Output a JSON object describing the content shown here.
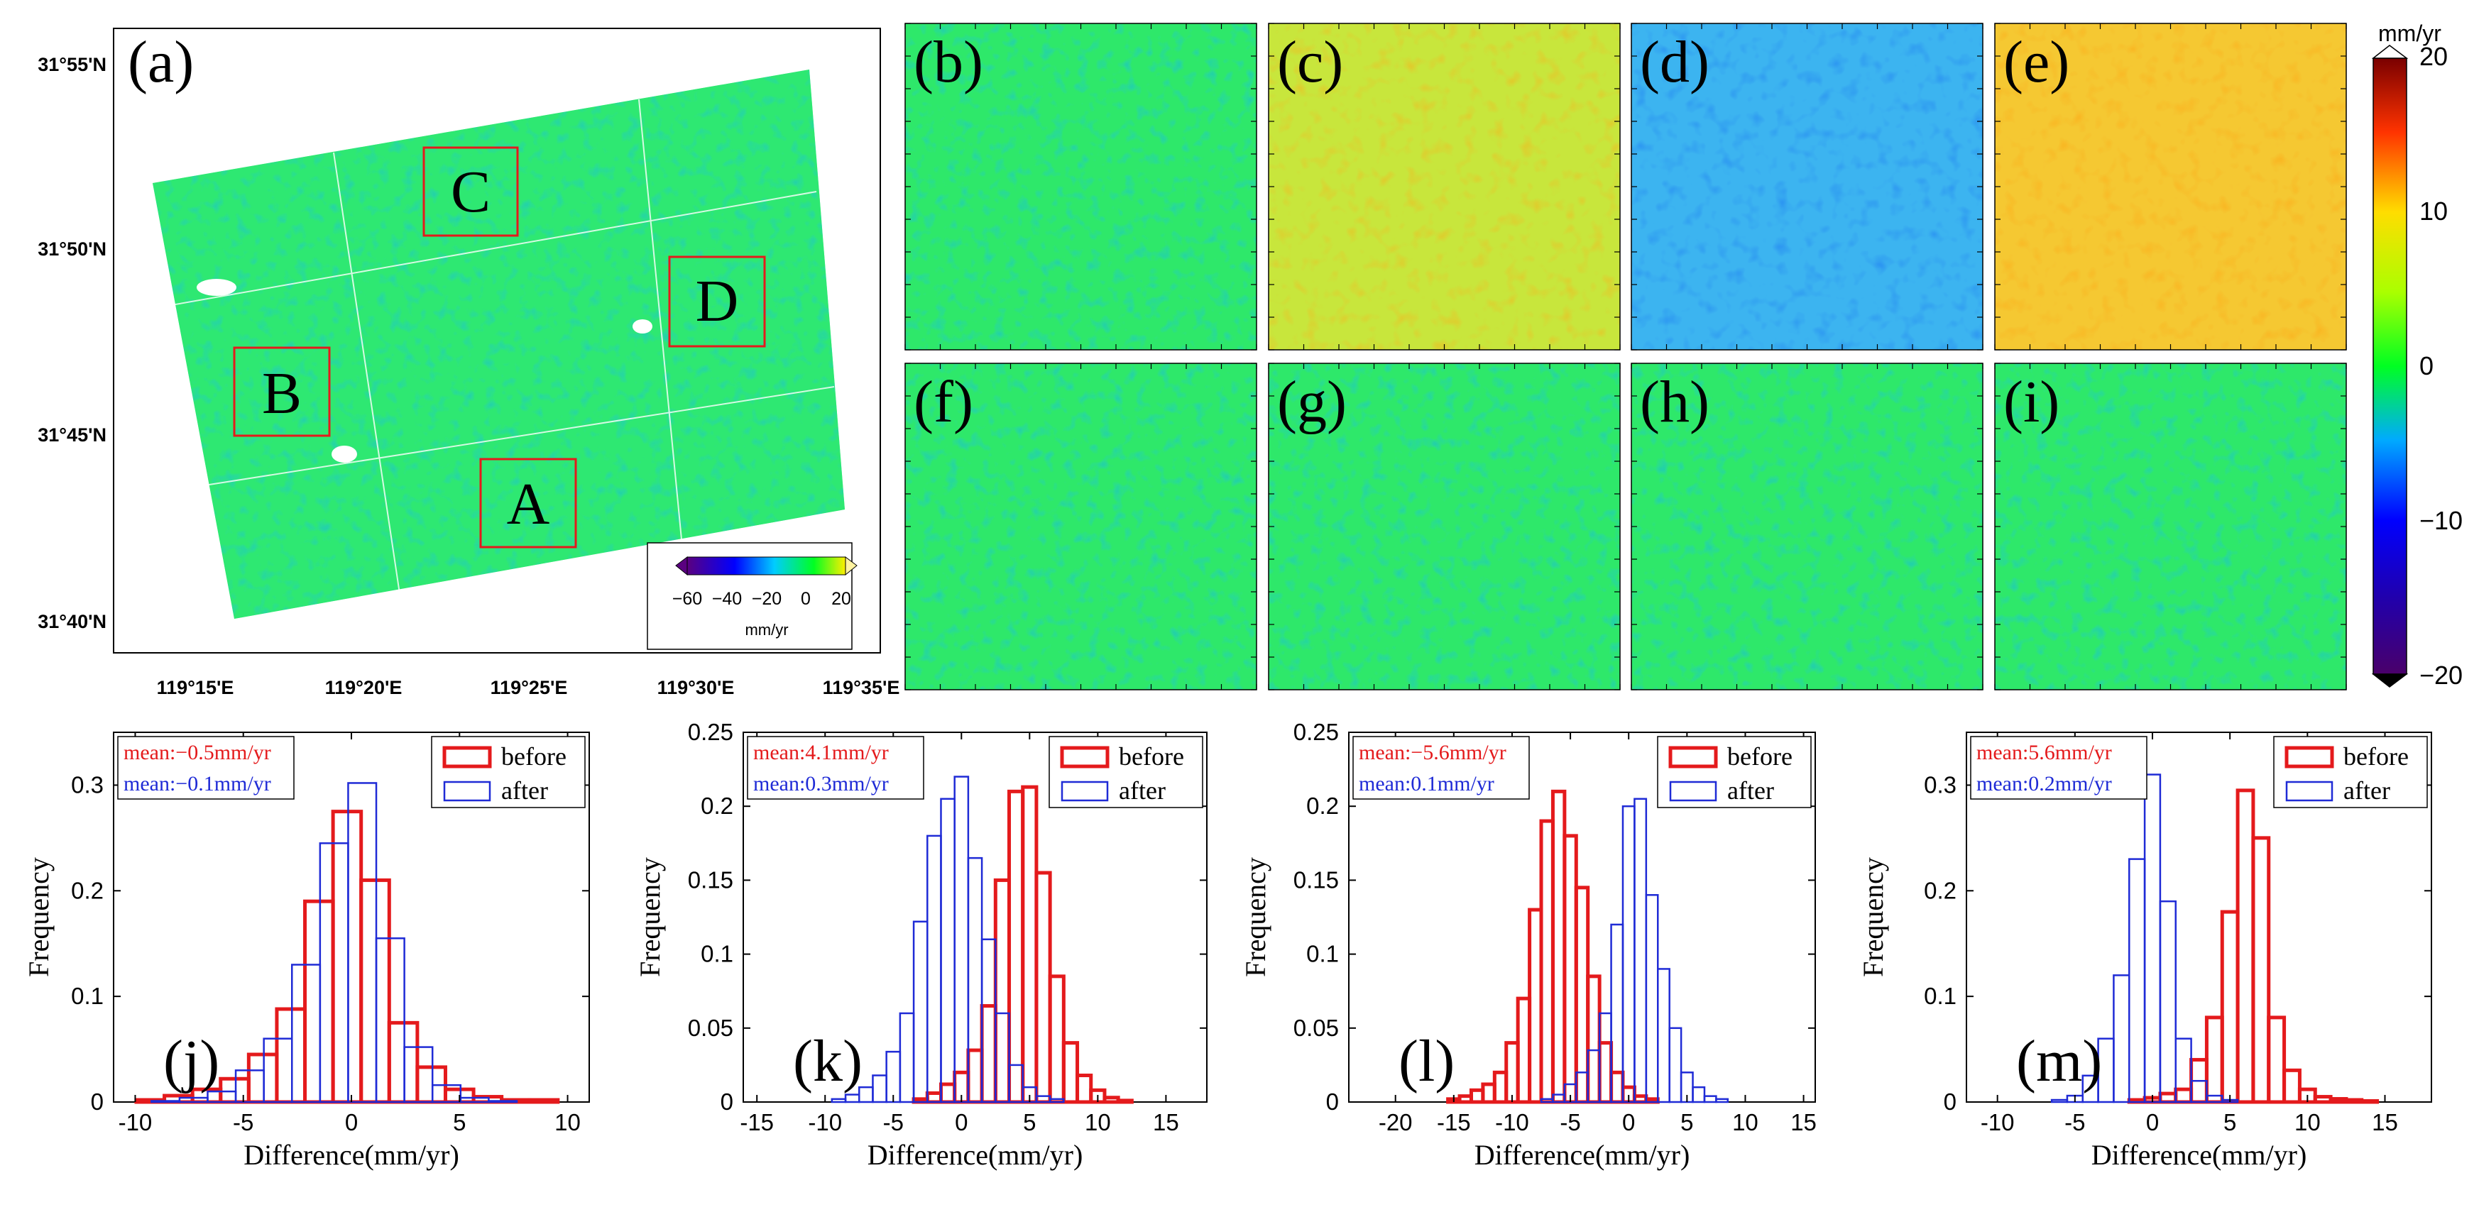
{
  "map_panel": {
    "label": "(a)",
    "lat_ticks": [
      "31°55'N",
      "31°50'N",
      "31°45'N",
      "31°40'N"
    ],
    "lon_ticks": [
      "119°15'E",
      "119°20'E",
      "119°25'E",
      "119°30'E",
      "119°35'E"
    ],
    "boxes": [
      {
        "letter": "C"
      },
      {
        "letter": "D"
      },
      {
        "letter": "B"
      },
      {
        "letter": "A"
      }
    ],
    "colorbar": {
      "ticks": [
        "−60",
        "−40",
        "−20",
        "0",
        "20"
      ],
      "unit": "mm/yr",
      "range": [
        -60,
        20
      ]
    }
  },
  "detail_panels": [
    "(b)",
    "(c)",
    "(d)",
    "(e)",
    "(f)",
    "(g)",
    "(h)",
    "(i)"
  ],
  "detail_offsets": [
    0,
    4,
    -6,
    6,
    0,
    0,
    0,
    0
  ],
  "colorbar_right": {
    "unit": "mm/yr",
    "ticks": [
      "20",
      "10",
      "0",
      "−10",
      "−20"
    ],
    "range": [
      -20,
      20
    ]
  },
  "colors": {
    "before": "#e41a1c",
    "after": "#1f2bd6"
  },
  "chart_data": [
    {
      "type": "bar",
      "label": "(j)",
      "xlabel": "Difference(mm/yr)",
      "ylabel": "Frequency",
      "xlim": [
        -11,
        11
      ],
      "ylim": [
        0,
        0.35
      ],
      "xticks": [
        -10,
        -5,
        0,
        5,
        10
      ],
      "xtick_labels": [
        "-10",
        "-5",
        "0",
        "5",
        "10"
      ],
      "yticks": [
        0,
        0.1,
        0.2,
        0.3
      ],
      "ytick_labels": [
        "0",
        "0.1",
        "0.2",
        "0.3"
      ],
      "bin_width": 1.3,
      "legend": [
        "before",
        "after"
      ],
      "means": [
        {
          "text": "mean:−0.5mm/yr",
          "series": "before"
        },
        {
          "text": "mean:−0.1mm/yr",
          "series": "after"
        }
      ],
      "series": [
        {
          "name": "before",
          "bin_centers": [
            -9.3,
            -8.0,
            -6.7,
            -5.4,
            -4.1,
            -2.8,
            -1.5,
            -0.2,
            1.1,
            2.4,
            3.7,
            5.0,
            6.3,
            7.6,
            8.9
          ],
          "values": [
            0.002,
            0.006,
            0.012,
            0.022,
            0.045,
            0.088,
            0.19,
            0.275,
            0.21,
            0.075,
            0.033,
            0.012,
            0.005,
            0.002,
            0.002
          ]
        },
        {
          "name": "after",
          "bin_centers": [
            -8.6,
            -7.3,
            -6.0,
            -4.7,
            -3.4,
            -2.1,
            -0.8,
            0.5,
            1.8,
            3.1,
            4.4,
            5.7,
            7.0
          ],
          "values": [
            0.001,
            0.004,
            0.01,
            0.03,
            0.06,
            0.13,
            0.245,
            0.302,
            0.155,
            0.052,
            0.016,
            0.004,
            0.001
          ]
        }
      ]
    },
    {
      "type": "bar",
      "label": "(k)",
      "xlabel": "Difference(mm/yr)",
      "ylabel": "Frequency",
      "xlim": [
        -16,
        18
      ],
      "ylim": [
        0,
        0.25
      ],
      "xticks": [
        -15,
        -10,
        -5,
        0,
        5,
        10,
        15
      ],
      "xtick_labels": [
        "-15",
        "-10",
        "-5",
        "0",
        "5",
        "10",
        "15"
      ],
      "yticks": [
        0,
        0.05,
        0.1,
        0.15,
        0.2,
        0.25
      ],
      "ytick_labels": [
        "0",
        "0.05",
        "0.1",
        "0.15",
        "0.2",
        "0.25"
      ],
      "bin_width": 1,
      "legend": [
        "before",
        "after"
      ],
      "means": [
        {
          "text": "mean:4.1mm/yr",
          "series": "before"
        },
        {
          "text": "mean:0.3mm/yr",
          "series": "after"
        }
      ],
      "series": [
        {
          "name": "before",
          "bin_centers": [
            -3,
            -2,
            -1,
            0,
            1,
            2,
            3,
            4,
            5,
            6,
            7,
            8,
            9,
            10,
            11,
            12
          ],
          "values": [
            0.002,
            0.006,
            0.012,
            0.02,
            0.035,
            0.065,
            0.15,
            0.21,
            0.213,
            0.155,
            0.085,
            0.04,
            0.018,
            0.008,
            0.003,
            0.001
          ]
        },
        {
          "name": "after",
          "bin_centers": [
            -9,
            -8,
            -7,
            -6,
            -5,
            -4,
            -3,
            -2,
            -1,
            0,
            1,
            2,
            3,
            4,
            5,
            6,
            7
          ],
          "values": [
            0.002,
            0.005,
            0.01,
            0.018,
            0.034,
            0.06,
            0.122,
            0.18,
            0.205,
            0.22,
            0.165,
            0.11,
            0.06,
            0.025,
            0.01,
            0.004,
            0.002
          ]
        }
      ]
    },
    {
      "type": "bar",
      "label": "(l)",
      "xlabel": "Difference(mm/yr)",
      "ylabel": "Frequency",
      "xlim": [
        -24,
        16
      ],
      "ylim": [
        0,
        0.25
      ],
      "xticks": [
        -20,
        -15,
        -10,
        -5,
        0,
        5,
        10,
        15
      ],
      "xtick_labels": [
        "-20",
        "-15",
        "-10",
        "-5",
        "0",
        "5",
        "10",
        "15"
      ],
      "yticks": [
        0,
        0.05,
        0.1,
        0.15,
        0.2,
        0.25
      ],
      "ytick_labels": [
        "0",
        "0.05",
        "0.1",
        "0.15",
        "0.2",
        "0.25"
      ],
      "bin_width": 1,
      "legend": [
        "before",
        "after"
      ],
      "means": [
        {
          "text": "mean:−5.6mm/yr",
          "series": "before"
        },
        {
          "text": "mean:0.1mm/yr",
          "series": "after"
        }
      ],
      "series": [
        {
          "name": "before",
          "bin_centers": [
            -15,
            -14,
            -13,
            -12,
            -11,
            -10,
            -9,
            -8,
            -7,
            -6,
            -5,
            -4,
            -3,
            -2,
            -1,
            0,
            1,
            2
          ],
          "values": [
            0.002,
            0.004,
            0.008,
            0.012,
            0.02,
            0.04,
            0.07,
            0.13,
            0.19,
            0.21,
            0.18,
            0.145,
            0.085,
            0.04,
            0.02,
            0.01,
            0.004,
            0.002
          ]
        },
        {
          "name": "after",
          "bin_centers": [
            -7,
            -6,
            -5,
            -4,
            -3,
            -2,
            -1,
            0,
            1,
            2,
            3,
            4,
            5,
            6,
            7,
            8
          ],
          "values": [
            0.002,
            0.005,
            0.012,
            0.02,
            0.035,
            0.06,
            0.12,
            0.2,
            0.205,
            0.14,
            0.09,
            0.05,
            0.02,
            0.01,
            0.004,
            0.002
          ]
        }
      ]
    },
    {
      "type": "bar",
      "label": "(m)",
      "xlabel": "Difference(mm/yr)",
      "ylabel": "Frequency",
      "xlim": [
        -12,
        18
      ],
      "ylim": [
        0,
        0.35
      ],
      "xticks": [
        -10,
        -5,
        0,
        5,
        10,
        15
      ],
      "xtick_labels": [
        "-10",
        "-5",
        "0",
        "5",
        "10",
        "15"
      ],
      "yticks": [
        0,
        0.1,
        0.2,
        0.3
      ],
      "ytick_labels": [
        "0",
        "0.1",
        "0.2",
        "0.3"
      ],
      "bin_width": 1,
      "legend": [
        "before",
        "after"
      ],
      "means": [
        {
          "text": "mean:5.6mm/yr",
          "series": "before"
        },
        {
          "text": "mean:0.2mm/yr",
          "series": "after"
        }
      ],
      "series": [
        {
          "name": "before",
          "bin_centers": [
            -1,
            0,
            1,
            2,
            3,
            4,
            5,
            6,
            7,
            8,
            9,
            10,
            11,
            12,
            13,
            14
          ],
          "values": [
            0.002,
            0.004,
            0.008,
            0.012,
            0.04,
            0.08,
            0.18,
            0.295,
            0.25,
            0.08,
            0.03,
            0.012,
            0.005,
            0.003,
            0.002,
            0.001
          ]
        },
        {
          "name": "after",
          "bin_centers": [
            -6,
            -5,
            -4,
            -3,
            -2,
            -1,
            0,
            1,
            2,
            3,
            4,
            5
          ],
          "values": [
            0.002,
            0.006,
            0.025,
            0.06,
            0.12,
            0.23,
            0.31,
            0.19,
            0.06,
            0.02,
            0.006,
            0.002
          ]
        }
      ]
    }
  ]
}
